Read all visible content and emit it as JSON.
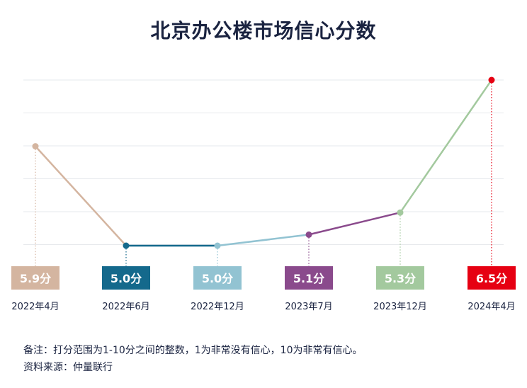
{
  "title": "北京办公楼市场信心分数",
  "notes": {
    "line1": "备注：打分范围为1-10分之间的整数，1为非常没有信心，10为非常有信心。",
    "line2": "资料来源：仲量联行"
  },
  "chart_data": {
    "type": "line",
    "title": "北京办公楼市场信心分数",
    "xlabel": "",
    "ylabel": "",
    "ylim": [
      4.6,
      6.6
    ],
    "grid": true,
    "categories": [
      "2022年4月",
      "2022年6月",
      "2022年12月",
      "2023年7月",
      "2023年12月",
      "2024年4月"
    ],
    "values": [
      5.9,
      5.0,
      5.0,
      5.1,
      5.3,
      6.5
    ],
    "value_labels": [
      "5.9分",
      "5.0分",
      "5.0分",
      "5.1分",
      "5.3分",
      "6.5分"
    ],
    "point_colors": [
      "#d4b5a0",
      "#14698c",
      "#92c3d2",
      "#8a4a8c",
      "#a3c99e",
      "#e60012"
    ],
    "segment_colors": [
      "#d4b5a0",
      "#14698c",
      "#92c3d2",
      "#8a4a8c",
      "#a3c99e"
    ]
  }
}
